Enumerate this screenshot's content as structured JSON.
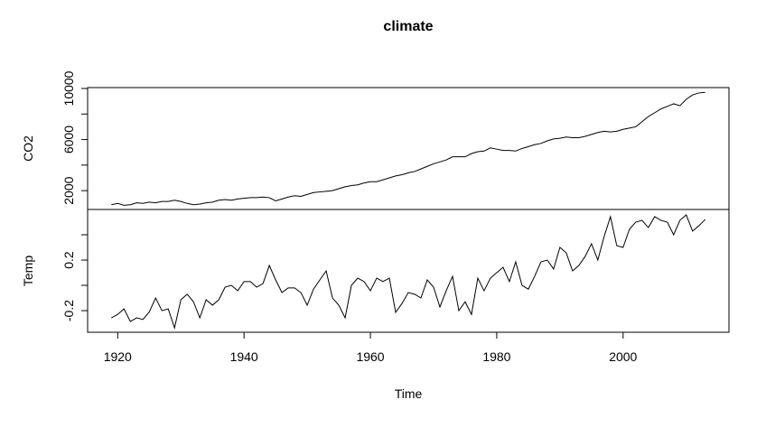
{
  "title": "climate",
  "chart_data": [
    {
      "type": "line",
      "ylabel": "CO2",
      "color": "#000000",
      "x": [
        1919,
        1920,
        1921,
        1922,
        1923,
        1924,
        1925,
        1926,
        1927,
        1928,
        1929,
        1930,
        1931,
        1932,
        1933,
        1934,
        1935,
        1936,
        1937,
        1938,
        1939,
        1940,
        1941,
        1942,
        1943,
        1944,
        1945,
        1946,
        1947,
        1948,
        1949,
        1950,
        1951,
        1952,
        1953,
        1954,
        1955,
        1956,
        1957,
        1958,
        1959,
        1960,
        1961,
        1962,
        1963,
        1964,
        1965,
        1966,
        1967,
        1968,
        1969,
        1970,
        1971,
        1972,
        1973,
        1974,
        1975,
        1976,
        1977,
        1978,
        1979,
        1980,
        1981,
        1982,
        1983,
        1984,
        1985,
        1986,
        1987,
        1988,
        1989,
        1990,
        1991,
        1992,
        1993,
        1994,
        1995,
        1996,
        1997,
        1998,
        1999,
        2000,
        2001,
        2002,
        2003,
        2004,
        2005,
        2006,
        2007,
        2008,
        2009,
        2010,
        2011,
        2012,
        2013
      ],
      "values": [
        900,
        1000,
        850,
        900,
        1050,
        1000,
        1100,
        1050,
        1150,
        1150,
        1250,
        1150,
        1000,
        900,
        950,
        1050,
        1100,
        1250,
        1300,
        1250,
        1350,
        1400,
        1450,
        1450,
        1500,
        1450,
        1200,
        1350,
        1500,
        1600,
        1550,
        1700,
        1850,
        1900,
        1950,
        2000,
        2150,
        2300,
        2400,
        2450,
        2600,
        2700,
        2700,
        2850,
        3000,
        3150,
        3250,
        3400,
        3500,
        3700,
        3900,
        4100,
        4250,
        4400,
        4650,
        4650,
        4650,
        4900,
        5050,
        5100,
        5350,
        5250,
        5150,
        5150,
        5100,
        5300,
        5450,
        5600,
        5700,
        5900,
        6050,
        6100,
        6200,
        6150,
        6150,
        6250,
        6400,
        6550,
        6650,
        6600,
        6650,
        6800,
        6900,
        7000,
        7400,
        7800,
        8100,
        8400,
        8600,
        8800,
        8650,
        9150,
        9500,
        9650,
        9700
      ],
      "xlim": [
        1915.24,
        2016.76
      ],
      "ylim": [
        526,
        10070
      ],
      "yticks": [
        2000,
        {
          "value": 4000,
          "label": null
        },
        6000,
        {
          "value": 8000,
          "label": null
        },
        10000
      ]
    },
    {
      "type": "line",
      "ylabel": "Temp",
      "xlabel": "Time",
      "color": "#000000",
      "x": [
        1919,
        1920,
        1921,
        1922,
        1923,
        1924,
        1925,
        1926,
        1927,
        1928,
        1929,
        1930,
        1931,
        1932,
        1933,
        1934,
        1935,
        1936,
        1937,
        1938,
        1939,
        1940,
        1941,
        1942,
        1943,
        1944,
        1945,
        1946,
        1947,
        1948,
        1949,
        1950,
        1951,
        1952,
        1953,
        1954,
        1955,
        1956,
        1957,
        1958,
        1959,
        1960,
        1961,
        1962,
        1963,
        1964,
        1965,
        1966,
        1967,
        1968,
        1969,
        1970,
        1971,
        1972,
        1973,
        1974,
        1975,
        1976,
        1977,
        1978,
        1979,
        1980,
        1981,
        1982,
        1983,
        1984,
        1985,
        1986,
        1987,
        1988,
        1989,
        1990,
        1991,
        1992,
        1993,
        1994,
        1995,
        1996,
        1997,
        1998,
        1999,
        2000,
        2001,
        2002,
        2003,
        2004,
        2005,
        2006,
        2007,
        2008,
        2009,
        2010,
        2011,
        2012,
        2013
      ],
      "values": [
        -0.257,
        -0.23,
        -0.186,
        -0.286,
        -0.257,
        -0.27,
        -0.21,
        -0.1,
        -0.2,
        -0.186,
        -0.336,
        -0.114,
        -0.07,
        -0.13,
        -0.257,
        -0.114,
        -0.157,
        -0.114,
        -0.014,
        0,
        -0.043,
        0.03,
        0.03,
        -0.014,
        0.014,
        0.157,
        0.043,
        -0.057,
        -0.02,
        -0.02,
        -0.057,
        -0.157,
        -0.03,
        0.043,
        0.114,
        -0.1,
        -0.157,
        -0.257,
        0,
        0.057,
        0.03,
        -0.043,
        0.057,
        0.03,
        0.057,
        -0.214,
        -0.143,
        -0.057,
        -0.07,
        -0.1,
        0.043,
        -0.014,
        -0.171,
        -0.043,
        0.071,
        -0.2,
        -0.13,
        -0.23,
        0.057,
        -0.043,
        0.057,
        0.1,
        0.143,
        0.03,
        0.186,
        0,
        -0.03,
        0.071,
        0.186,
        0.2,
        0.129,
        0.3,
        0.257,
        0.114,
        0.157,
        0.229,
        0.329,
        0.2,
        0.386,
        0.543,
        0.314,
        0.3,
        0.443,
        0.5,
        0.514,
        0.457,
        0.543,
        0.514,
        0.5,
        0.4,
        0.514,
        0.557,
        0.429,
        0.471,
        0.521
      ],
      "xlim": [
        1915.24,
        2016.76
      ],
      "ylim": [
        -0.371,
        0.6
      ],
      "xticks": [
        1920,
        1940,
        1960,
        1980,
        2000
      ],
      "yticks": [
        -0.2,
        {
          "value": 0,
          "label": null
        },
        0.2,
        {
          "value": 0.4,
          "label": null
        }
      ]
    }
  ]
}
